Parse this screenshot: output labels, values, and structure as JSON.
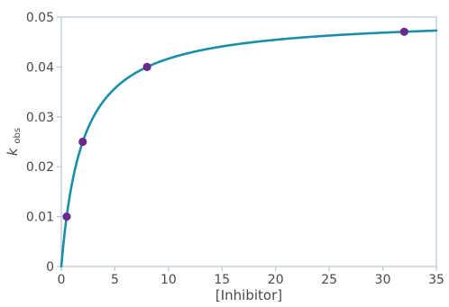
{
  "chart_data": {
    "type": "line",
    "xlabel": "[Inhibitor]",
    "ylabel_main": "k",
    "ylabel_sub": "obs",
    "xlim": [
      0,
      35
    ],
    "ylim": [
      0,
      0.05
    ],
    "grid": false,
    "legend": "none",
    "x_ticks": [
      {
        "value": 0,
        "label": "0"
      },
      {
        "value": 5,
        "label": "5"
      },
      {
        "value": 10,
        "label": "10"
      },
      {
        "value": 15,
        "label": "15"
      },
      {
        "value": 20,
        "label": "20"
      },
      {
        "value": 25,
        "label": "25"
      },
      {
        "value": 30,
        "label": "30"
      },
      {
        "value": 35,
        "label": "35"
      }
    ],
    "y_ticks": [
      {
        "value": 0,
        "label": "0"
      },
      {
        "value": 0.01,
        "label": "0.01"
      },
      {
        "value": 0.02,
        "label": "0.02"
      },
      {
        "value": 0.03,
        "label": "0.03"
      },
      {
        "value": 0.04,
        "label": "0.04"
      },
      {
        "value": 0.05,
        "label": "0.05"
      }
    ],
    "curve": {
      "model": "hyperbolic",
      "kmax": 0.05,
      "kd": 2,
      "x": [
        0,
        0.25,
        0.5,
        0.75,
        1,
        1.5,
        2,
        2.5,
        3,
        4,
        5,
        6,
        7,
        8,
        9,
        10,
        12,
        14,
        16,
        18,
        20,
        22,
        24,
        26,
        28,
        30,
        32,
        34,
        35
      ],
      "y": [
        0,
        0.00556,
        0.01,
        0.01364,
        0.01667,
        0.02143,
        0.025,
        0.02778,
        0.03,
        0.03333,
        0.03571,
        0.0375,
        0.03889,
        0.04,
        0.04091,
        0.04167,
        0.04286,
        0.04375,
        0.04444,
        0.045,
        0.04545,
        0.04583,
        0.04615,
        0.04643,
        0.04667,
        0.04688,
        0.04706,
        0.04722,
        0.0473
      ],
      "color": "#1a8fa6"
    },
    "points": {
      "x": [
        0.5,
        2,
        8,
        32
      ],
      "y": [
        0.01,
        0.025,
        0.04,
        0.04706
      ],
      "color": "#6a2a8c"
    },
    "frame_color": "#b8c6d4"
  }
}
